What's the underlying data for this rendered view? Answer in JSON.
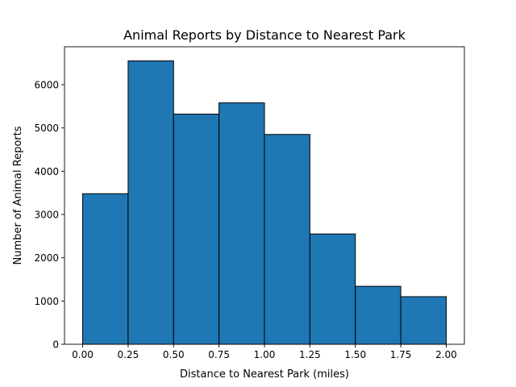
{
  "chart_data": {
    "type": "bar",
    "title": "Animal Reports by Distance to Nearest Park",
    "xlabel": "Distance to Nearest Park (miles)",
    "ylabel": "Number of Animal Reports",
    "bins": [
      {
        "start": 0.0,
        "end": 0.25,
        "value": 3480
      },
      {
        "start": 0.25,
        "end": 0.5,
        "value": 6550
      },
      {
        "start": 0.5,
        "end": 0.75,
        "value": 5320
      },
      {
        "start": 0.75,
        "end": 1.0,
        "value": 5580
      },
      {
        "start": 1.0,
        "end": 1.25,
        "value": 4850
      },
      {
        "start": 1.25,
        "end": 1.5,
        "value": 2550
      },
      {
        "start": 1.5,
        "end": 1.75,
        "value": 1340
      },
      {
        "start": 1.75,
        "end": 2.0,
        "value": 1100
      }
    ],
    "xlim": [
      -0.1,
      2.1
    ],
    "ylim": [
      0,
      6877
    ],
    "xticks": [
      "0.00",
      "0.25",
      "0.50",
      "0.75",
      "1.00",
      "1.25",
      "1.50",
      "1.75",
      "2.00"
    ],
    "yticks": [
      "0",
      "1000",
      "2000",
      "3000",
      "4000",
      "5000",
      "6000"
    ],
    "grid": false,
    "colors": {
      "bar": "#1f77b4",
      "edge": "#000000"
    }
  }
}
